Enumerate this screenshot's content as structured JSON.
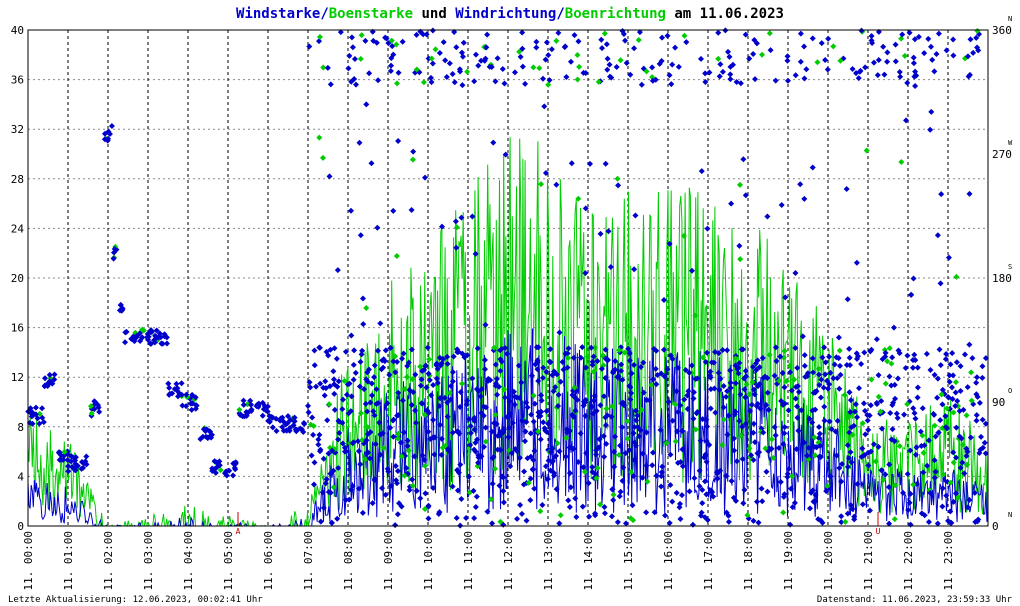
{
  "chart_data": {
    "type": "scatter",
    "title_parts": [
      {
        "text": "Windstarke",
        "color": "#0000cc"
      },
      {
        "text": "/",
        "color": "#0000cc"
      },
      {
        "text": "Boenstarke",
        "color": "#00cc00"
      },
      {
        "text": " und ",
        "color": "#000000"
      },
      {
        "text": "Windrichtung",
        "color": "#0000cc"
      },
      {
        "text": "/",
        "color": "#0000cc"
      },
      {
        "text": "Boenrichtung",
        "color": "#00cc00"
      },
      {
        "text": " am 11.06.2023",
        "color": "#000000"
      }
    ],
    "y_left": {
      "lim": [
        0,
        40
      ],
      "ticks": [
        "0",
        "4",
        "8",
        "12",
        "16",
        "20",
        "24",
        "28",
        "32",
        "36",
        "40"
      ]
    },
    "y_right": {
      "lim": [
        0,
        360
      ],
      "ticks": [
        {
          "value": 0,
          "label": "0",
          "compass": "N"
        },
        {
          "value": 90,
          "label": "90",
          "compass": "O"
        },
        {
          "value": 180,
          "label": "180",
          "compass": "S"
        },
        {
          "value": 270,
          "label": "270",
          "compass": "W"
        },
        {
          "value": 360,
          "label": "360",
          "compass": "N"
        }
      ]
    },
    "x_ticks": [
      "11. 00:00",
      "11. 01:00",
      "11. 02:00",
      "11. 03:00",
      "11. 04:00",
      "11. 05:00",
      "11. 06:00",
      "11. 07:00",
      "11. 08:00",
      "11. 09:00",
      "11. 10:00",
      "11. 11:00",
      "11. 12:00",
      "11. 13:00",
      "11. 14:00",
      "11. 15:00",
      "11. 16:00",
      "11. 17:00",
      "11. 18:00",
      "11. 19:00",
      "11. 20:00",
      "11. 21:00",
      "11. 22:00",
      "11. 23:00"
    ],
    "x_range_hours": [
      0,
      24
    ],
    "markers": [
      {
        "label": "A",
        "hour": 5.25,
        "color": "#cc0000"
      },
      {
        "label": "U",
        "hour": 21.25,
        "color": "#cc0000"
      }
    ],
    "series": [
      {
        "kind": "windstarke",
        "color": "#0000cc",
        "style": "line"
      },
      {
        "kind": "boenstarke",
        "color": "#00cc00",
        "style": "line"
      },
      {
        "kind": "windrichtung",
        "color": "#0000cc",
        "style": "diamond"
      },
      {
        "kind": "boenrichtung",
        "color": "#00cc00",
        "style": "diamond"
      }
    ],
    "direction_segments": [
      {
        "from": 0.0,
        "to": 0.4,
        "dir": 80
      },
      {
        "from": 0.4,
        "to": 0.7,
        "dir": 105
      },
      {
        "from": 0.7,
        "to": 1.0,
        "dir": 50
      },
      {
        "from": 1.0,
        "to": 1.5,
        "dir": 45
      },
      {
        "from": 1.5,
        "to": 1.8,
        "dir": 85
      },
      {
        "from": 1.9,
        "to": 2.1,
        "dir": 285
      },
      {
        "from": 2.1,
        "to": 2.25,
        "dir": 200
      },
      {
        "from": 2.25,
        "to": 2.4,
        "dir": 160
      },
      {
        "from": 2.4,
        "to": 3.5,
        "dir": 137
      },
      {
        "from": 3.5,
        "to": 3.85,
        "dir": 100
      },
      {
        "from": 3.85,
        "to": 4.25,
        "dir": 90
      },
      {
        "from": 4.25,
        "to": 4.6,
        "dir": 68
      },
      {
        "from": 4.6,
        "to": 5.2,
        "dir": 42
      },
      {
        "from": 5.25,
        "to": 6.0,
        "dir": 85
      },
      {
        "from": 6.0,
        "to": 6.95,
        "dir": 74
      },
      {
        "from": 7.0,
        "to": 23.95,
        "dir": 90
      }
    ],
    "wind_envelope": [
      {
        "hour": 0,
        "wind": 2.5,
        "gust": 5
      },
      {
        "hour": 1,
        "wind": 2,
        "gust": 4
      },
      {
        "hour": 2,
        "wind": 0,
        "gust": 0
      },
      {
        "hour": 4,
        "wind": 0.5,
        "gust": 1
      },
      {
        "hour": 6,
        "wind": 0,
        "gust": 0
      },
      {
        "hour": 7,
        "wind": 0.5,
        "gust": 1
      },
      {
        "hour": 8,
        "wind": 5,
        "gust": 8
      },
      {
        "hour": 9,
        "wind": 7,
        "gust": 11
      },
      {
        "hour": 10,
        "wind": 8,
        "gust": 13
      },
      {
        "hour": 11,
        "wind": 9,
        "gust": 15
      },
      {
        "hour": 12,
        "wind": 10,
        "gust": 18
      },
      {
        "hour": 13,
        "wind": 10,
        "gust": 17
      },
      {
        "hour": 14,
        "wind": 9,
        "gust": 14
      },
      {
        "hour": 15,
        "wind": 9,
        "gust": 15
      },
      {
        "hour": 16,
        "wind": 9,
        "gust": 16
      },
      {
        "hour": 17,
        "wind": 9,
        "gust": 15
      },
      {
        "hour": 18,
        "wind": 8,
        "gust": 14
      },
      {
        "hour": 19,
        "wind": 7,
        "gust": 12
      },
      {
        "hour": 20,
        "wind": 6,
        "gust": 9
      },
      {
        "hour": 21,
        "wind": 3,
        "gust": 5
      },
      {
        "hour": 22,
        "wind": 3,
        "gust": 5
      },
      {
        "hour": 23,
        "wind": 3,
        "gust": 6
      },
      {
        "hour": 24,
        "wind": 2,
        "gust": 4
      }
    ]
  },
  "footer": {
    "left": "Letzte Aktualisierung: 12.06.2023, 00:02:41 Uhr",
    "right": "Datenstand: 11.06.2023, 23:59:33 Uhr"
  }
}
